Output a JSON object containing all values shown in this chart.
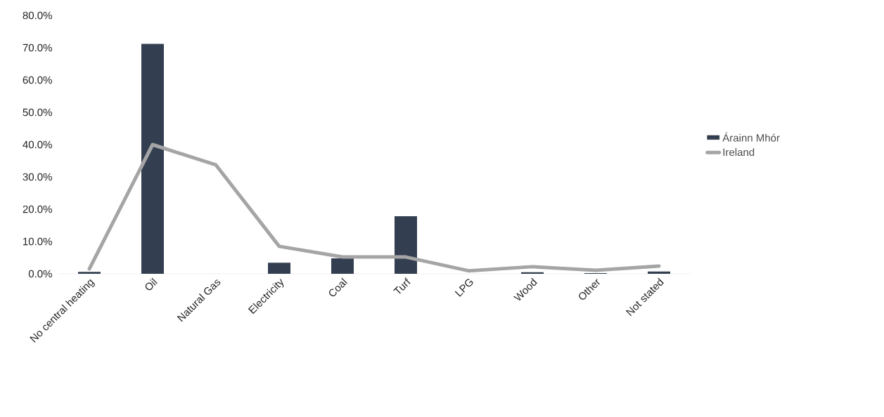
{
  "chart_data": {
    "type": "bar",
    "categories": [
      "No central heating",
      "Oil",
      "Natural Gas",
      "Electricity",
      "Coal",
      "Turf",
      "LPG",
      "Wood",
      "Other",
      "Not stated"
    ],
    "series": [
      {
        "name": "Árainn Mhór",
        "color": "#333f50",
        "values": [
          0.6,
          71.2,
          0,
          3.4,
          4.8,
          17.8,
          0,
          0.5,
          0.2,
          0.7
        ]
      },
      {
        "name": "Ireland",
        "type": "line",
        "color": "#a5a5a5",
        "values": [
          1.5,
          40.0,
          33.7,
          8.5,
          5.2,
          5.2,
          0.9,
          2.2,
          1.1,
          2.4
        ]
      }
    ],
    "ylim": [
      0,
      80
    ],
    "yticks": [
      {
        "value": 0,
        "label": "0.0%"
      },
      {
        "value": 10,
        "label": "10.0%"
      },
      {
        "value": 20,
        "label": "20.0%"
      },
      {
        "value": 30,
        "label": "30.0%"
      },
      {
        "value": 40,
        "label": "40.0%"
      },
      {
        "value": 50,
        "label": "50.0%"
      },
      {
        "value": 60,
        "label": "60.0%"
      },
      {
        "value": 70,
        "label": "70.0%"
      },
      {
        "value": 80,
        "label": "80.0%"
      }
    ],
    "legend": "right"
  }
}
